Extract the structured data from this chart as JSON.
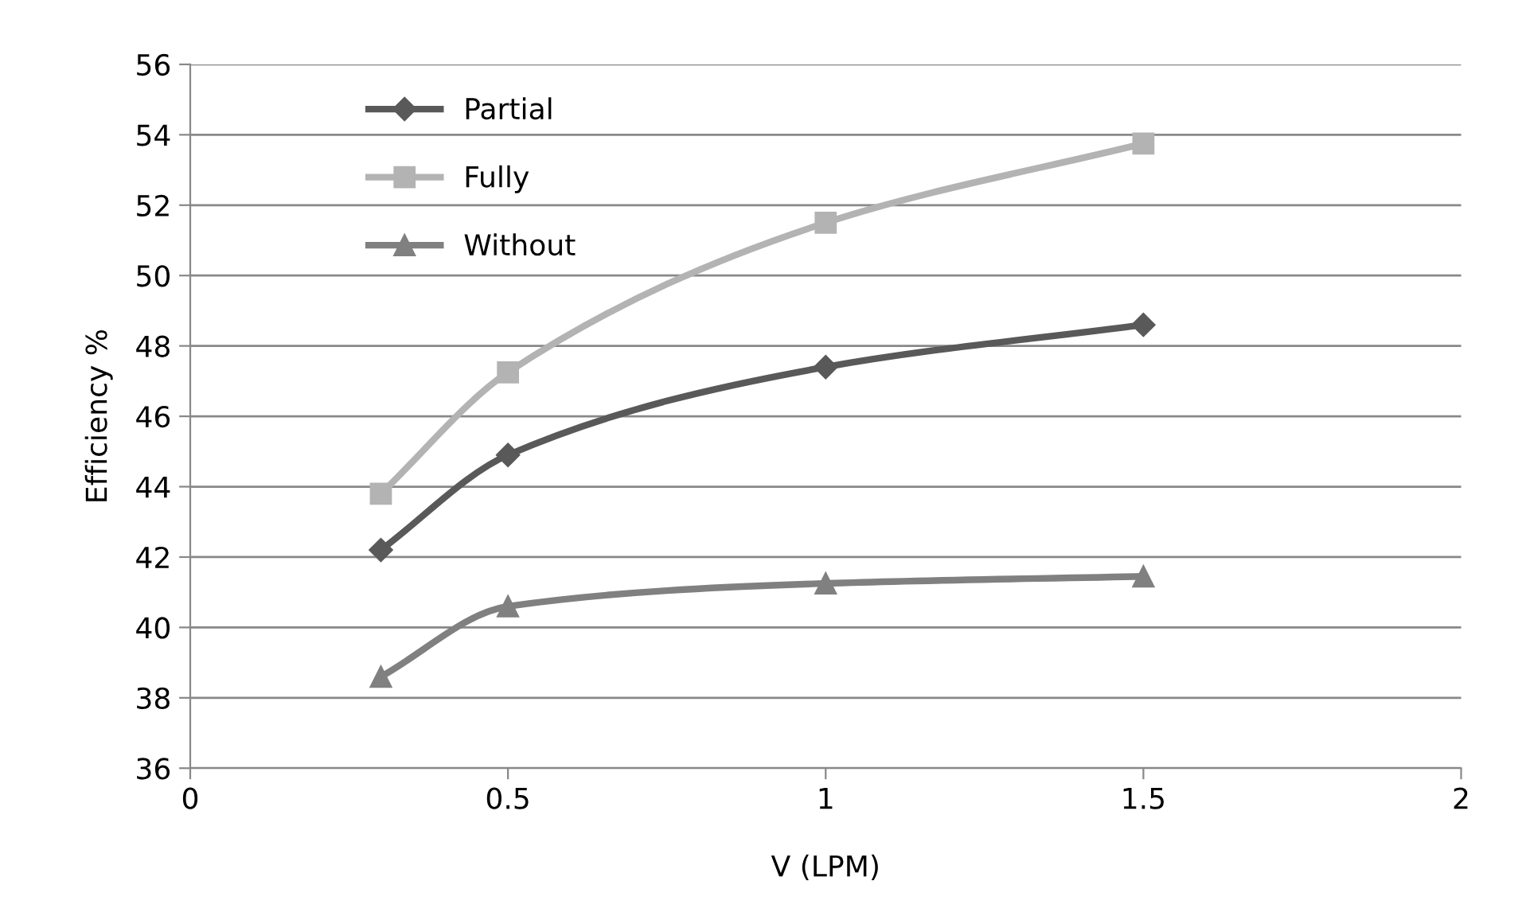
{
  "chart_data": {
    "type": "line",
    "xlabel": "V (LPM)",
    "ylabel": "Efficiency %",
    "xlim": [
      0,
      2
    ],
    "xticks": [
      0,
      0.5,
      1,
      1.5,
      2
    ],
    "ylim": [
      36,
      56
    ],
    "yticks": [
      36,
      38,
      40,
      42,
      44,
      46,
      48,
      50,
      52,
      54,
      56
    ],
    "grid": "y",
    "legend": "top left",
    "line_style": "solid",
    "series": [
      {
        "name": "Partial",
        "color": "#595959",
        "marker": "diamond",
        "x": [
          0.3,
          0.5,
          1,
          1.5
        ],
        "values": [
          42.2,
          44.9,
          47.4,
          48.6
        ]
      },
      {
        "name": "Fully",
        "color": "#b3b3b3",
        "marker": "square",
        "x": [
          0.3,
          0.5,
          1,
          1.5
        ],
        "values": [
          43.8,
          47.25,
          51.5,
          53.75
        ]
      },
      {
        "name": "Without",
        "color": "#808080",
        "marker": "triangle",
        "x": [
          0.3,
          0.5,
          1,
          1.5
        ],
        "values": [
          38.6,
          40.6,
          41.25,
          41.45
        ]
      }
    ]
  }
}
